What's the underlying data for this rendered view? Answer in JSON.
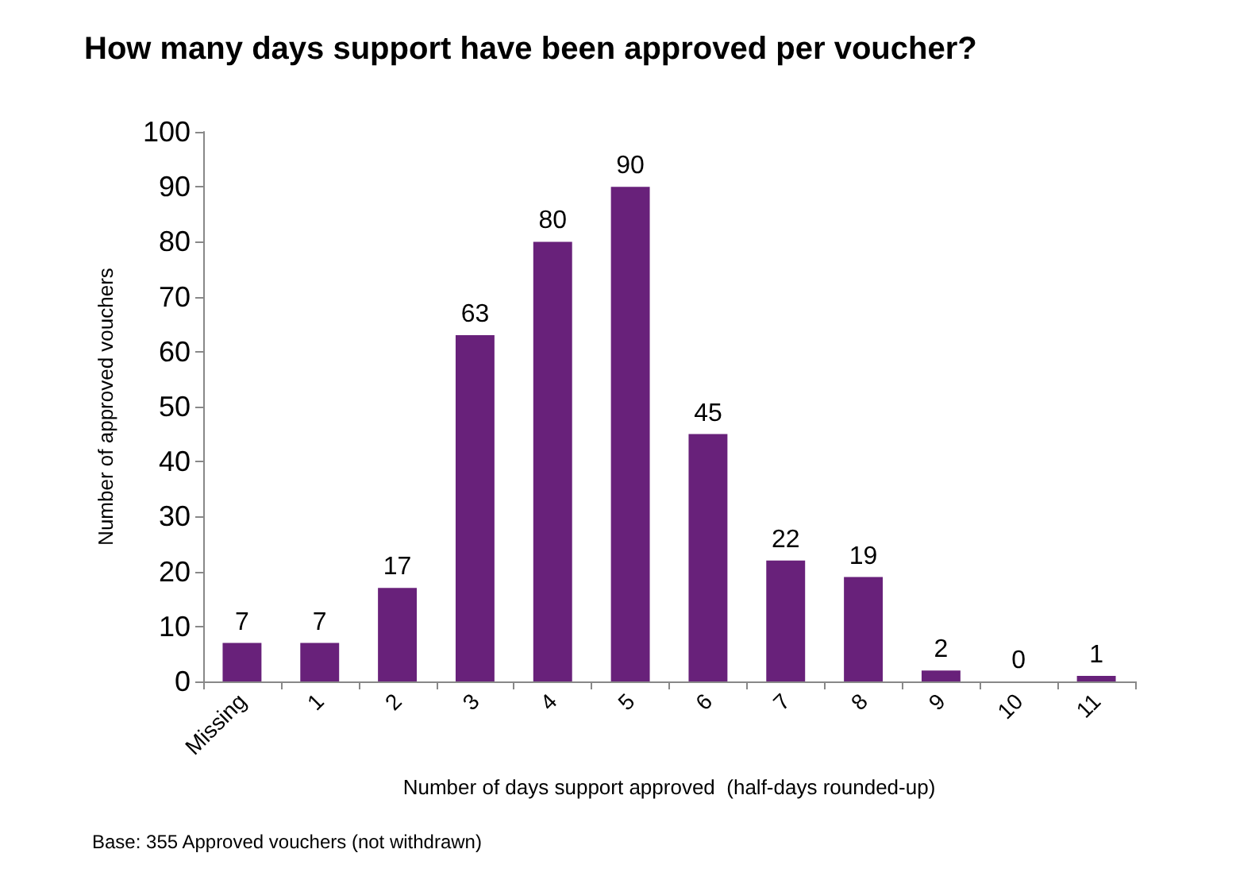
{
  "chart_data": {
    "type": "bar",
    "title": "How many days support have been approved per voucher?",
    "xlabel": "Number of days support approved  (half-days rounded-up)",
    "ylabel": "Number of approved vouchers",
    "categories": [
      "Missing",
      "1",
      "2",
      "3",
      "4",
      "5",
      "6",
      "7",
      "8",
      "9",
      "10",
      "11"
    ],
    "values": [
      7,
      7,
      17,
      63,
      80,
      90,
      45,
      22,
      19,
      2,
      0,
      1
    ],
    "color": "#68217a",
    "ylim": [
      0,
      100
    ],
    "yticks": [
      0,
      10,
      20,
      30,
      40,
      50,
      60,
      70,
      80,
      90,
      100
    ],
    "grid": false,
    "data_labels": true,
    "annotations": [
      "Base: 355 Approved vouchers (not withdrawn)"
    ]
  }
}
